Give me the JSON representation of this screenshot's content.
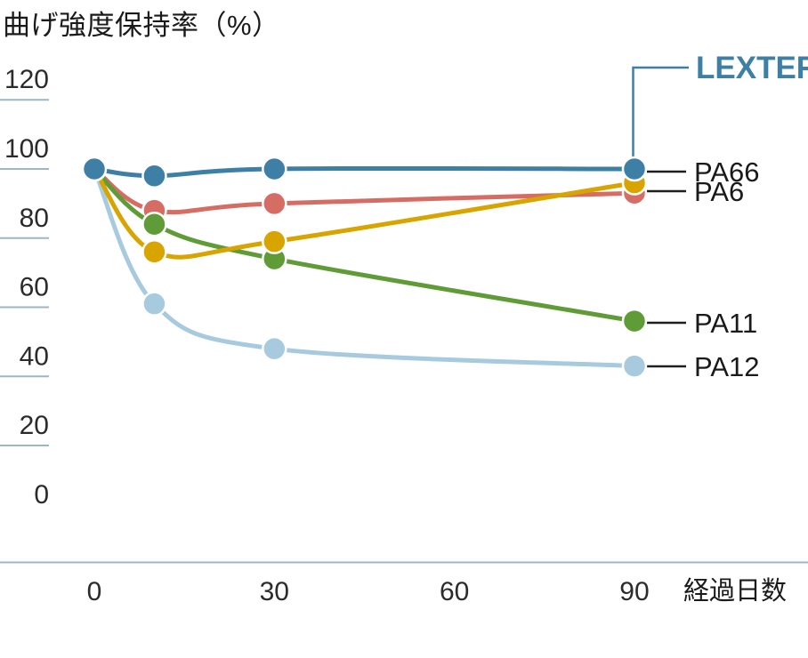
{
  "title": "曲げ強度保持率（%）",
  "chart_data": {
    "type": "line",
    "x": [
      0,
      10,
      30,
      90
    ],
    "xlabel": "経過日数",
    "xticks": [
      0,
      30,
      60,
      90
    ],
    "yticks": [
      120,
      100,
      80,
      60,
      40,
      20,
      0
    ],
    "ylim": [
      0,
      120
    ],
    "grid": false,
    "legend_position": "right-end-labels",
    "series": [
      {
        "name": "LEXTER",
        "color": "#3e7fa6",
        "values": [
          100,
          98,
          100,
          100
        ],
        "highlight": true
      },
      {
        "name": "PA66",
        "color": "#d8a400",
        "values": [
          100,
          76,
          79,
          96
        ]
      },
      {
        "name": "PA6",
        "color": "#d66d64",
        "values": [
          100,
          88,
          90,
          93
        ]
      },
      {
        "name": "PA11",
        "color": "#5f9c38",
        "values": [
          100,
          84,
          74,
          56
        ]
      },
      {
        "name": "PA12",
        "color": "#a8cadf",
        "values": [
          100,
          61,
          48,
          43
        ]
      }
    ]
  },
  "colors": {
    "tick_line": "#9cb7c4",
    "axis_line": "#9cb7c4",
    "tick_text": "#2b2b2b",
    "label_text": "#1a1a1a",
    "connector": "#1f1f1f",
    "lexter_label": "#3e7fa6",
    "background": "#ffffff"
  }
}
